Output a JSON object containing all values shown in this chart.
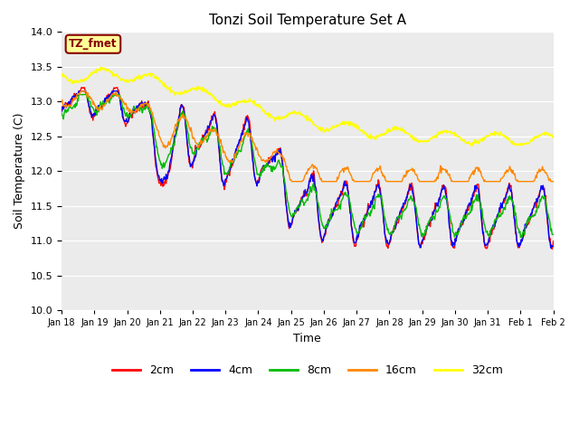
{
  "title": "Tonzi Soil Temperature Set A",
  "xlabel": "Time",
  "ylabel": "Soil Temperature (C)",
  "ylim": [
    10.0,
    14.0
  ],
  "yticks": [
    10.0,
    10.5,
    11.0,
    11.5,
    12.0,
    12.5,
    13.0,
    13.5,
    14.0
  ],
  "xtick_labels": [
    "Jan 18",
    "Jan 19",
    "Jan 20",
    "Jan 21",
    "Jan 22",
    "Jan 23",
    "Jan 24",
    "Jan 25",
    "Jan 26",
    "Jan 27",
    "Jan 28",
    "Jan 29",
    "Jan 30",
    "Jan 31",
    "Feb 1",
    "Feb 2"
  ],
  "colors": {
    "2cm": "#ff0000",
    "4cm": "#0000ff",
    "8cm": "#00bb00",
    "16cm": "#ff8800",
    "32cm": "#ffff00"
  },
  "legend_label": "TZ_fmet",
  "legend_bg": "#ffff99",
  "legend_border": "#880000",
  "bg_color": "#ebebeb",
  "n_points": 768
}
